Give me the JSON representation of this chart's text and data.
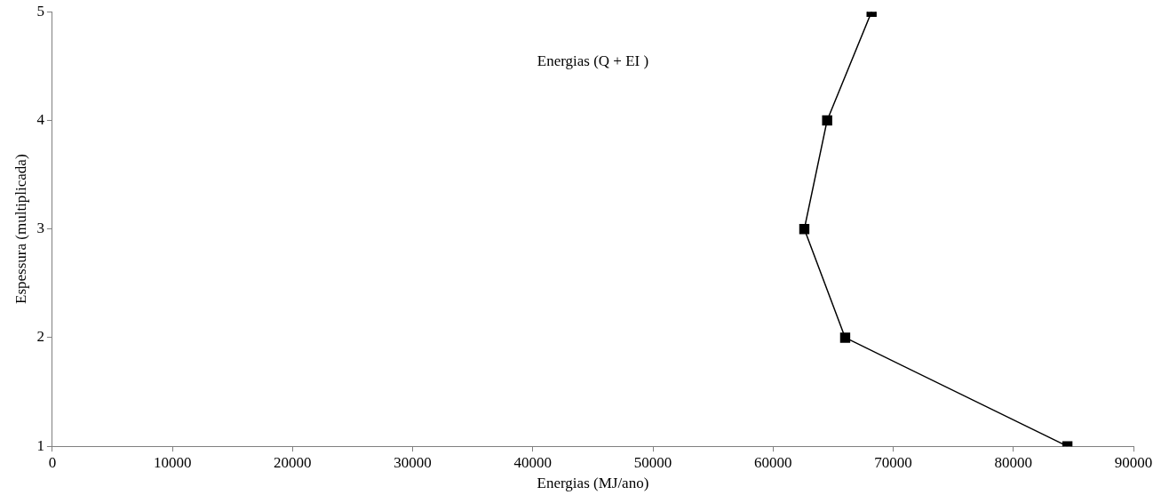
{
  "chart_data": {
    "type": "line",
    "xlabel": "Energias (MJ/ano)",
    "ylabel": "Espessura (multiplicada)",
    "annotations": [
      "Energias (Q + EI )"
    ],
    "series": [
      {
        "color": "#000000",
        "x": [
          84500,
          66000,
          62600,
          64500,
          68200
        ],
        "values": [
          1,
          2,
          3,
          4,
          5
        ]
      }
    ],
    "xlim": [
      0,
      90000
    ],
    "xticks": [
      0,
      10000,
      20000,
      30000,
      40000,
      50000,
      60000,
      70000,
      80000,
      90000
    ],
    "ylim": [
      1,
      5
    ],
    "yticks": [
      1,
      2,
      3,
      4,
      5
    ],
    "grid": false,
    "legend": false,
    "marker": "square",
    "line_style": "solid"
  }
}
